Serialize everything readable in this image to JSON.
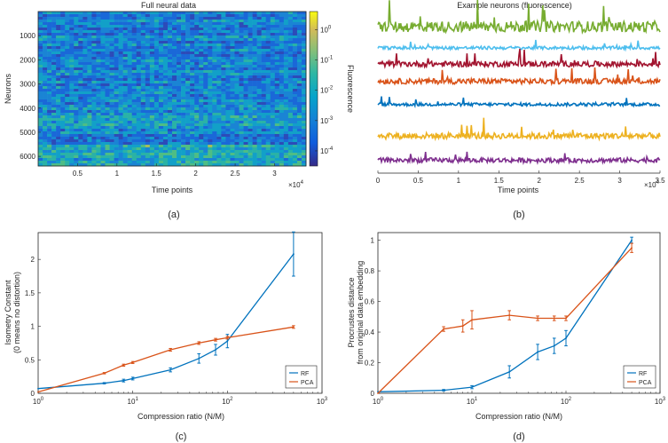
{
  "chart_data": [
    {
      "id": "a",
      "type": "heatmap",
      "title": "Full neural data",
      "xlabel": "Time points",
      "ylabel": "Neurons",
      "x_ticks": [
        "0.5",
        "1",
        "1.5",
        "2",
        "2.5",
        "3"
      ],
      "x_tick_values": [
        5000,
        10000,
        15000,
        20000,
        25000,
        30000
      ],
      "x_multiplier": "×10",
      "x_multiplier_exp": "4",
      "xlim": [
        0,
        34000
      ],
      "y_ticks": [
        "1000",
        "2000",
        "3000",
        "4000",
        "5000",
        "6000"
      ],
      "y_tick_values": [
        1000,
        2000,
        3000,
        4000,
        5000,
        6000
      ],
      "ylim": [
        0,
        6400
      ],
      "colorbar_label": "Fluorescence",
      "colorbar_ticks": [
        {
          "base": "10",
          "exp": "0",
          "value": 0
        },
        {
          "base": "10",
          "exp": "-1",
          "value": -1
        },
        {
          "base": "10",
          "exp": "-2",
          "value": -2
        },
        {
          "base": "10",
          "exp": "-3",
          "value": -3
        },
        {
          "base": "10",
          "exp": "-4",
          "value": -4
        }
      ],
      "colorbar_range_log10": [
        -4.5,
        0.6
      ],
      "caption": "(a)"
    },
    {
      "id": "b",
      "type": "line",
      "title": "Example neurons (fluorescence)",
      "xlabel": "Time points",
      "x_ticks": [
        "0",
        "0.5",
        "1",
        "1.5",
        "2",
        "2.5",
        "3",
        "3.5"
      ],
      "x_tick_values": [
        0,
        5000,
        10000,
        15000,
        20000,
        25000,
        30000,
        35000
      ],
      "x_multiplier": "×10",
      "x_multiplier_exp": "4",
      "xlim": [
        0,
        35000
      ],
      "traces": [
        {
          "color": "#77ac30",
          "offset": 0.88,
          "amplitude": 0.07
        },
        {
          "color": "#4dbeee",
          "offset": 0.77,
          "amplitude": 0.02
        },
        {
          "color": "#a2142f",
          "offset": 0.66,
          "amplitude": 0.035
        },
        {
          "color": "#d95319",
          "offset": 0.55,
          "amplitude": 0.035
        },
        {
          "color": "#0072bd",
          "offset": 0.41,
          "amplitude": 0.02
        },
        {
          "color": "#edb120",
          "offset": 0.2,
          "amplitude": 0.04
        },
        {
          "color": "#7e2f8e",
          "offset": 0.05,
          "amplitude": 0.03
        }
      ],
      "caption": "(b)"
    },
    {
      "id": "c",
      "type": "line",
      "xlabel": "Compression ratio (N/M)",
      "ylabel_line1": "Isometry Constant",
      "ylabel_line2": "(0 means no distortion)",
      "xscale": "log",
      "xlim": [
        1,
        1000
      ],
      "ylim": [
        0,
        2.4
      ],
      "y_ticks": [
        "0",
        "0.5",
        "1",
        "1.5",
        "2"
      ],
      "y_tick_values": [
        0,
        0.5,
        1,
        1.5,
        2
      ],
      "x_ticks": [
        {
          "base": "10",
          "exp": "0",
          "value": 1
        },
        {
          "base": "10",
          "exp": "1",
          "value": 10
        },
        {
          "base": "10",
          "exp": "2",
          "value": 100
        },
        {
          "base": "10",
          "exp": "3",
          "value": 1000
        }
      ],
      "series": [
        {
          "name": "RF",
          "color": "#0072bd",
          "x": [
            1,
            5,
            8,
            10,
            25,
            50,
            75,
            100,
            500
          ],
          "y": [
            0.07,
            0.15,
            0.19,
            0.22,
            0.35,
            0.52,
            0.65,
            0.78,
            2.08
          ],
          "err": [
            0,
            0.01,
            0.02,
            0.02,
            0.03,
            0.07,
            0.08,
            0.1,
            0.33
          ]
        },
        {
          "name": "PCA",
          "color": "#d95319",
          "x": [
            1,
            5,
            8,
            10,
            25,
            50,
            75,
            100,
            500
          ],
          "y": [
            0.02,
            0.3,
            0.42,
            0.46,
            0.65,
            0.75,
            0.8,
            0.83,
            0.99
          ],
          "err": [
            0,
            0.01,
            0.015,
            0.015,
            0.02,
            0.02,
            0.02,
            0.02,
            0.02
          ]
        }
      ],
      "legend_position": "bottom-right",
      "caption": "(c)"
    },
    {
      "id": "d",
      "type": "line",
      "xlabel": "Compression ratio (N/M)",
      "ylabel_line1": "Procrustes distance",
      "ylabel_line2": "from original data embedding",
      "xscale": "log",
      "xlim": [
        1,
        1000
      ],
      "ylim": [
        0,
        1.05
      ],
      "y_ticks": [
        "0",
        "0.2",
        "0.4",
        "0.6",
        "0.8",
        "1"
      ],
      "y_tick_values": [
        0,
        0.2,
        0.4,
        0.6,
        0.8,
        1
      ],
      "x_ticks": [
        {
          "base": "10",
          "exp": "0",
          "value": 1
        },
        {
          "base": "10",
          "exp": "1",
          "value": 10
        },
        {
          "base": "10",
          "exp": "2",
          "value": 100
        },
        {
          "base": "10",
          "exp": "3",
          "value": 1000
        }
      ],
      "series": [
        {
          "name": "RF",
          "color": "#0072bd",
          "x": [
            1,
            5,
            10,
            25,
            50,
            75,
            100,
            500
          ],
          "y": [
            0.01,
            0.02,
            0.04,
            0.14,
            0.27,
            0.31,
            0.36,
            1.0
          ],
          "err": [
            0,
            0.005,
            0.01,
            0.04,
            0.05,
            0.05,
            0.05,
            0.02
          ]
        },
        {
          "name": "PCA",
          "color": "#d95319",
          "x": [
            1,
            5,
            8,
            10,
            25,
            50,
            75,
            100,
            500
          ],
          "y": [
            0.0,
            0.42,
            0.44,
            0.48,
            0.51,
            0.49,
            0.49,
            0.49,
            0.95
          ],
          "err": [
            0,
            0.015,
            0.04,
            0.06,
            0.03,
            0.015,
            0.015,
            0.015,
            0.03
          ]
        }
      ],
      "legend_position": "bottom-right",
      "caption": "(d)"
    }
  ]
}
